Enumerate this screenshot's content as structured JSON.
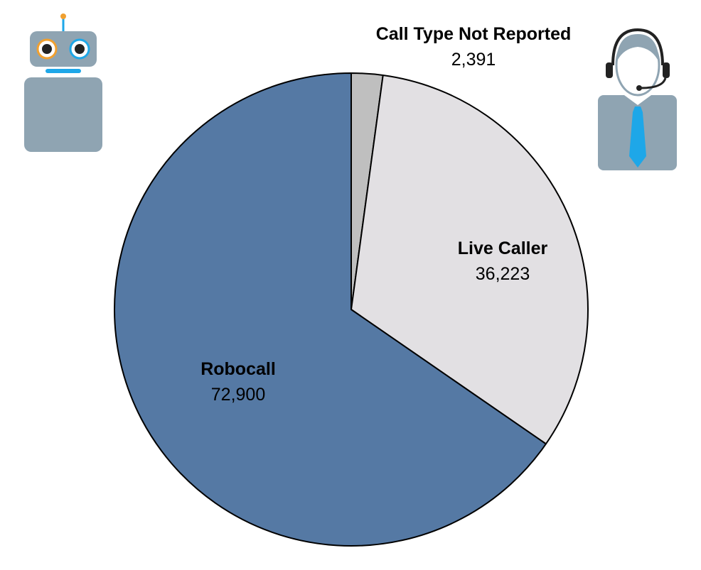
{
  "chart_data": {
    "type": "pie",
    "title": "",
    "slices": [
      {
        "label": "Call Type Not Reported",
        "value": 2391,
        "display_value": "2,391",
        "color": "#bfbfbf"
      },
      {
        "label": "Live Caller",
        "value": 36223,
        "display_value": "36,223",
        "color": "#e2e0e3"
      },
      {
        "label": "Robocall",
        "value": 72900,
        "display_value": "72,900",
        "color": "#5579a4"
      }
    ],
    "start_angle_deg": 0,
    "direction": "clockwise",
    "stroke_color": "#000000"
  },
  "icons": {
    "robot": {
      "name": "robot-icon",
      "body_color": "#8fa4b2",
      "accent_color": "#1ea7e8",
      "eye_ring_left": "#f0a030",
      "antenna_tip": "#f0a030"
    },
    "live_caller": {
      "name": "headset-agent-icon",
      "body_color": "#8fa4b2",
      "tie_color": "#1ea7e8",
      "headset_color": "#222222"
    }
  }
}
